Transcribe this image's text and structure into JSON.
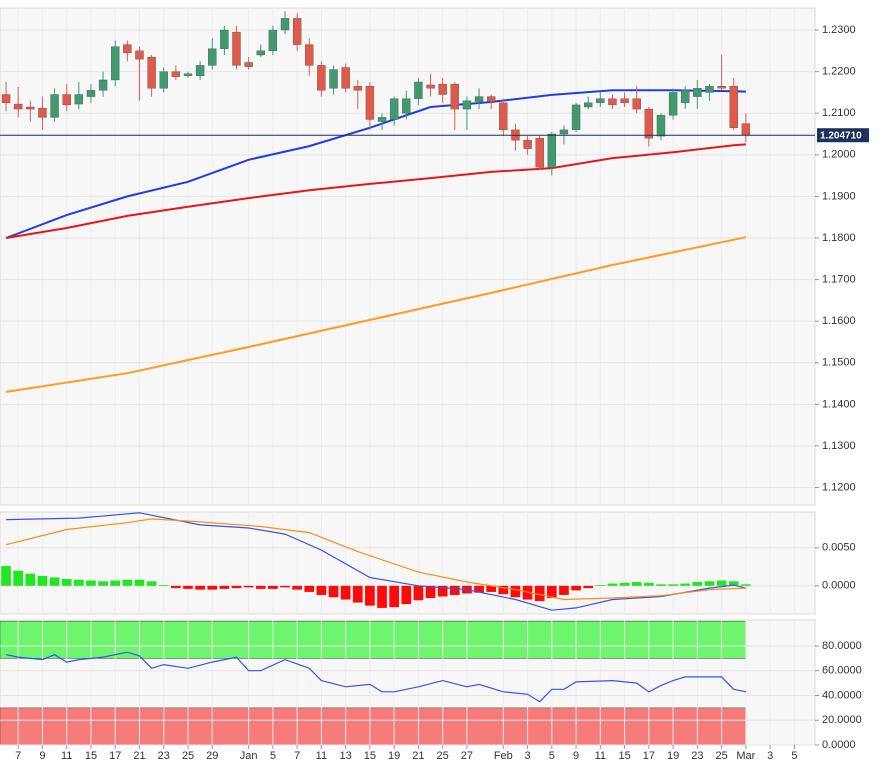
{
  "chart_data": [
    {
      "type": "candlestick",
      "x": [
        -1,
        0,
        1,
        2,
        3,
        4,
        5,
        6,
        7,
        8,
        9,
        10,
        11,
        12,
        13,
        14,
        15,
        16,
        17,
        18,
        19,
        20,
        21,
        22,
        23,
        24,
        25,
        26,
        27,
        28,
        29,
        30,
        31,
        32,
        33,
        34,
        35,
        36,
        37,
        38,
        39,
        40,
        41,
        42,
        43,
        44,
        45,
        46,
        47,
        48,
        49,
        50,
        51,
        52,
        53,
        54,
        55,
        56,
        57,
        58,
        59,
        60
      ],
      "open": [
        1.2145,
        1.2122,
        1.2115,
        1.2112,
        1.209,
        1.2145,
        1.2122,
        1.214,
        1.2155,
        1.218,
        1.2265,
        1.225,
        1.2235,
        1.216,
        1.22,
        1.219,
        1.219,
        1.2215,
        1.2255,
        1.2295,
        1.2222,
        1.224,
        1.225,
        1.23,
        1.2328,
        1.2265,
        1.2215,
        1.216,
        1.221,
        1.2165,
        1.2165,
        1.208,
        1.2085,
        1.21,
        1.2135,
        1.2168,
        1.217,
        1.217,
        1.211,
        1.2128,
        1.214,
        1.2125,
        1.206,
        1.2035,
        1.204,
        1.197,
        1.205,
        1.206,
        1.2115,
        1.2125,
        1.2135,
        1.2135,
        1.2135,
        1.211,
        1.2045,
        1.2095,
        1.2125,
        1.214,
        1.215,
        1.2165,
        1.2165,
        1.2075
      ],
      "high": [
        1.2175,
        1.2163,
        1.213,
        1.214,
        1.216,
        1.217,
        1.2175,
        1.217,
        1.22,
        1.2275,
        1.2275,
        1.226,
        1.224,
        1.221,
        1.2215,
        1.22,
        1.2225,
        1.228,
        1.231,
        1.231,
        1.2235,
        1.2265,
        1.231,
        1.2345,
        1.234,
        1.228,
        1.2225,
        1.2215,
        1.222,
        1.218,
        1.2175,
        1.21,
        1.214,
        1.2155,
        1.2185,
        1.2195,
        1.2185,
        1.2175,
        1.214,
        1.216,
        1.2145,
        1.2135,
        1.2075,
        1.2045,
        1.2045,
        1.2055,
        1.207,
        1.2125,
        1.214,
        1.215,
        1.2145,
        1.215,
        1.2165,
        1.2115,
        1.21,
        1.216,
        1.2165,
        1.218,
        1.217,
        1.224,
        1.2185,
        1.21
      ],
      "low": [
        1.2105,
        1.209,
        1.208,
        1.206,
        1.208,
        1.2105,
        1.211,
        1.2125,
        1.214,
        1.2165,
        1.2225,
        1.213,
        1.214,
        1.215,
        1.218,
        1.2185,
        1.218,
        1.2205,
        1.224,
        1.2205,
        1.2205,
        1.2235,
        1.224,
        1.229,
        1.225,
        1.219,
        1.214,
        1.2145,
        1.215,
        1.211,
        1.206,
        1.206,
        1.207,
        1.2085,
        1.212,
        1.214,
        1.2125,
        1.206,
        1.206,
        1.211,
        1.211,
        1.2045,
        1.201,
        1.2,
        1.1965,
        1.195,
        1.2025,
        1.2055,
        1.211,
        1.2115,
        1.211,
        1.2115,
        1.21,
        1.202,
        1.2035,
        1.2085,
        1.211,
        1.211,
        1.213,
        1.2155,
        1.206,
        1.203
      ],
      "close": [
        1.2125,
        1.211,
        1.211,
        1.209,
        1.2145,
        1.212,
        1.2145,
        1.2155,
        1.218,
        1.226,
        1.2245,
        1.223,
        1.216,
        1.22,
        1.2188,
        1.2195,
        1.2215,
        1.2255,
        1.23,
        1.2215,
        1.2212,
        1.225,
        1.23,
        1.2328,
        1.2265,
        1.2215,
        1.2155,
        1.2205,
        1.216,
        1.2155,
        1.2085,
        1.209,
        1.2135,
        1.2135,
        1.2175,
        1.216,
        1.2145,
        1.211,
        1.213,
        1.214,
        1.2128,
        1.206,
        1.2035,
        1.2015,
        1.197,
        1.205,
        1.206,
        1.212,
        1.2125,
        1.2135,
        1.212,
        1.2125,
        1.211,
        1.204,
        1.2095,
        1.215,
        1.2155,
        1.216,
        1.2165,
        1.216,
        1.2065,
        1.2047
      ],
      "up_color": "#3f9a6f",
      "down_color": "#e05a4b",
      "series": [
        {
          "color": "#1d3ee6",
          "x": [
            -1,
            4,
            9,
            14,
            19,
            24,
            29,
            34,
            39,
            44,
            49,
            54,
            59,
            60
          ],
          "values": [
            1.18,
            1.1855,
            1.19,
            1.1935,
            1.1988,
            1.2021,
            1.2065,
            1.2115,
            1.2127,
            1.2144,
            1.2155,
            1.2155,
            1.2153,
            1.2152
          ]
        },
        {
          "color": "#e8161b",
          "x": [
            -1,
            4,
            9,
            14,
            19,
            24,
            29,
            34,
            39,
            44,
            49,
            54,
            59,
            60
          ],
          "values": [
            1.18,
            1.1824,
            1.1853,
            1.1875,
            1.1896,
            1.1915,
            1.193,
            1.1944,
            1.1959,
            1.1968,
            1.1992,
            1.2006,
            1.2023,
            1.2025
          ]
        },
        {
          "color": "#ff9c1f",
          "x": [
            -1,
            9,
            19,
            29,
            39,
            49,
            60
          ],
          "values": [
            1.143,
            1.1475,
            1.1538,
            1.1603,
            1.1668,
            1.1735,
            1.1802
          ]
        }
      ],
      "last_price": {
        "value": 1.20471,
        "label": "1.204710"
      },
      "ylim": [
        1.1158,
        1.2353
      ],
      "yticks": [
        {
          "value": 1.23,
          "label": "1.2300"
        },
        {
          "value": 1.22,
          "label": "1.2200"
        },
        {
          "value": 1.21,
          "label": "1.2100"
        },
        {
          "value": 1.2,
          "label": "1.2000"
        },
        {
          "value": 1.19,
          "label": "1.1900"
        },
        {
          "value": 1.18,
          "label": "1.1800"
        },
        {
          "value": 1.17,
          "label": "1.1700"
        },
        {
          "value": 1.16,
          "label": "1.1600"
        },
        {
          "value": 1.15,
          "label": "1.1500"
        },
        {
          "value": 1.14,
          "label": "1.1400"
        },
        {
          "value": 1.13,
          "label": "1.1300"
        },
        {
          "value": 1.12,
          "label": "1.1200"
        }
      ],
      "xlim": [
        -1.5,
        65.7
      ],
      "xticks": [
        {
          "value": 0,
          "label": "7"
        },
        {
          "value": 2,
          "label": "9"
        },
        {
          "value": 4,
          "label": "11"
        },
        {
          "value": 6,
          "label": "15"
        },
        {
          "value": 8,
          "label": "17"
        },
        {
          "value": 10,
          "label": "21"
        },
        {
          "value": 12,
          "label": "23"
        },
        {
          "value": 14,
          "label": "25"
        },
        {
          "value": 16,
          "label": "29"
        },
        {
          "value": 19,
          "label": "Jan"
        },
        {
          "value": 21,
          "label": "5"
        },
        {
          "value": 23,
          "label": "7"
        },
        {
          "value": 25,
          "label": "11"
        },
        {
          "value": 27,
          "label": "13"
        },
        {
          "value": 29,
          "label": "15"
        },
        {
          "value": 31,
          "label": "19"
        },
        {
          "value": 33,
          "label": "21"
        },
        {
          "value": 35,
          "label": "25"
        },
        {
          "value": 37,
          "label": "27"
        },
        {
          "value": 40,
          "label": "Feb"
        },
        {
          "value": 42,
          "label": "3"
        },
        {
          "value": 44,
          "label": "5"
        },
        {
          "value": 46,
          "label": "9"
        },
        {
          "value": 48,
          "label": "11"
        },
        {
          "value": 50,
          "label": "15"
        },
        {
          "value": 52,
          "label": "17"
        },
        {
          "value": 54,
          "label": "19"
        },
        {
          "value": 56,
          "label": "23"
        },
        {
          "value": 58,
          "label": "25"
        },
        {
          "value": 60,
          "label": "Mar"
        },
        {
          "value": 62,
          "label": "3"
        },
        {
          "value": 64,
          "label": "5"
        }
      ],
      "grid": true
    },
    {
      "type": "macd",
      "x": [
        -1,
        0,
        1,
        2,
        3,
        4,
        5,
        6,
        7,
        8,
        9,
        10,
        11,
        12,
        13,
        14,
        15,
        16,
        17,
        18,
        19,
        20,
        21,
        22,
        23,
        24,
        25,
        26,
        27,
        28,
        29,
        30,
        31,
        32,
        33,
        34,
        35,
        36,
        37,
        38,
        39,
        40,
        41,
        42,
        43,
        44,
        45,
        46,
        47,
        48,
        49,
        50,
        51,
        52,
        53,
        54,
        55,
        56,
        57,
        58,
        59,
        60
      ],
      "histogram": [
        0.0026,
        0.002,
        0.0016,
        0.0013,
        0.0011,
        0.0009,
        0.0008,
        0.0007,
        0.0006,
        0.0007,
        0.0008,
        0.0008,
        0.0006,
        0.0001,
        -0.0003,
        -0.0004,
        -0.0005,
        -0.0005,
        -0.0004,
        -0.0003,
        -0.0002,
        -0.0004,
        -0.0004,
        -0.0002,
        -0.0005,
        -0.0008,
        -0.0012,
        -0.0015,
        -0.0018,
        -0.0022,
        -0.0026,
        -0.0029,
        -0.0028,
        -0.0024,
        -0.0019,
        -0.0016,
        -0.0014,
        -0.0012,
        -0.001,
        -0.0009,
        -0.0008,
        -0.0011,
        -0.0015,
        -0.0018,
        -0.002,
        -0.0016,
        -0.0012,
        -0.0006,
        -0.0003,
        0.0001,
        0.0003,
        0.0004,
        0.0005,
        0.0004,
        0.0002,
        0.0002,
        0.0003,
        0.0005,
        0.0006,
        0.0007,
        0.0006,
        0.0002
      ],
      "up_color": "#22e622",
      "down_color": "#ff0a0a",
      "series": [
        {
          "color": "#3355ee",
          "x": [
            -1,
            5,
            10,
            15,
            19,
            22,
            25,
            29,
            33,
            37,
            41,
            44,
            46,
            49,
            53,
            57,
            59,
            60
          ],
          "values": [
            0.0087,
            0.0089,
            0.0096,
            0.008,
            0.0076,
            0.0068,
            0.0047,
            0.0011,
            0.0,
            -0.0005,
            -0.0018,
            -0.0032,
            -0.0029,
            -0.0018,
            -0.0014,
            -0.0003,
            0.0001,
            -0.0003
          ]
        },
        {
          "color": "#ff8c1a",
          "x": [
            -1,
            4,
            9,
            11,
            15,
            20,
            24,
            28,
            33,
            37,
            41,
            45,
            49,
            53,
            57,
            60
          ],
          "values": [
            0.0054,
            0.0074,
            0.0083,
            0.0088,
            0.0084,
            0.0078,
            0.007,
            0.0045,
            0.0018,
            0.0005,
            -0.0005,
            -0.0018,
            -0.0016,
            -0.0013,
            -0.0005,
            -0.0003
          ]
        }
      ],
      "ylim": [
        -0.0037,
        0.0097
      ],
      "yticks": [
        {
          "value": 0.005,
          "label": "0.0050"
        },
        {
          "value": 0,
          "label": "0.0000"
        }
      ],
      "grid": true
    },
    {
      "type": "line",
      "bands": [
        {
          "from": 70,
          "to": 100,
          "color": "#6ef56e"
        },
        {
          "from": 0,
          "to": 30,
          "color": "#f77b7b"
        }
      ],
      "series": [
        {
          "color": "#3355ee",
          "x": [
            -1,
            0,
            2,
            3,
            4,
            5,
            7,
            9,
            10,
            11,
            12,
            14,
            16,
            18,
            19,
            20,
            22,
            24,
            25,
            27,
            29,
            30,
            31,
            33,
            35,
            37,
            38,
            40,
            42,
            43,
            44,
            45,
            46,
            49,
            51,
            52,
            53,
            54,
            55,
            57,
            58,
            59,
            60
          ],
          "values": [
            73,
            71,
            69,
            73,
            67,
            69,
            71,
            75,
            72,
            62,
            65,
            62,
            67,
            71,
            60,
            60,
            69,
            62,
            52,
            47,
            49,
            43,
            43,
            47,
            52,
            47,
            49,
            43,
            41,
            35,
            45,
            45,
            51,
            52,
            50,
            43,
            48,
            52,
            55,
            55,
            55,
            45,
            43
          ]
        }
      ],
      "ylim": [
        0,
        101
      ],
      "yticks": [
        {
          "value": 80,
          "label": "80.0000"
        },
        {
          "value": 60,
          "label": "60.0000"
        },
        {
          "value": 40,
          "label": "40.0000"
        },
        {
          "value": 20,
          "label": "20.0000"
        },
        {
          "value": 0,
          "label": "0.0000"
        }
      ],
      "grid": true
    }
  ]
}
